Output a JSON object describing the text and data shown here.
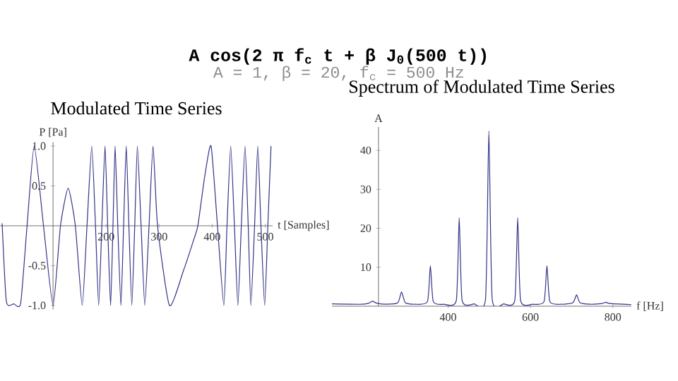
{
  "chart_data": [
    {
      "type": "line",
      "title": "Modulated Time Series",
      "xlabel": "t [Samples]",
      "ylabel": "P [Pa]",
      "color": "#333388",
      "annotations": [
        "A cos(2 π f$_{c}$ t + β J$_{0}$(500 t))",
        "A = 1, β = 20, f$_{c}$ = 500 Hz"
      ],
      "x": [
        4,
        12,
        26,
        39,
        51,
        64.5,
        82,
        100,
        114,
        128.5,
        142,
        155,
        164,
        173,
        180,
        186,
        192,
        198,
        203,
        208.5,
        213,
        217,
        222,
        228,
        233,
        238,
        243,
        248.5,
        254,
        259,
        266,
        273,
        281,
        288.5,
        297,
        319.5,
        346,
        364,
        373,
        386,
        398,
        410,
        422,
        428,
        435,
        442,
        448.5,
        455,
        462,
        468,
        473,
        480,
        486,
        492,
        499,
        505,
        511
      ],
      "values": [
        0.03,
        -0.95,
        -0.98,
        -0.97,
        0,
        1.0,
        0,
        -1.0,
        0,
        0.47,
        0,
        -1.0,
        0,
        1.0,
        0,
        -1.0,
        0,
        1.0,
        0,
        -1.0,
        0,
        1.0,
        0,
        -1.0,
        0,
        1.0,
        0,
        -1.0,
        0,
        1.0,
        0,
        -1.0,
        0,
        1.0,
        0,
        -1.0,
        -0.56,
        -0.2,
        0,
        0.62,
        1.0,
        0,
        -1.0,
        0,
        1.0,
        0,
        -1.0,
        0,
        1.0,
        0,
        -1.0,
        0,
        1.0,
        0,
        -1.0,
        0,
        1.0
      ],
      "xlim": [
        0,
        514
      ],
      "ylim": [
        -1.05,
        1.05
      ],
      "xticks": [
        200,
        300,
        400,
        500
      ],
      "yticks": [
        {
          "value": -1,
          "label": "-1.0"
        },
        {
          "value": -0.5,
          "label": "-0.5"
        },
        {
          "value": 0.5,
          "label": "0.5"
        },
        {
          "value": 1,
          "label": "1.0"
        }
      ]
    },
    {
      "type": "line",
      "title": "Spectrum of Modulated Time Series",
      "xlabel": "f [Hz]",
      "ylabel": "A",
      "color": "#333388",
      "x": [
        118,
        190,
        208,
        217,
        226,
        250,
        278,
        287,
        296,
        320,
        350,
        357,
        364,
        390,
        420,
        427,
        434,
        463,
        491,
        499,
        507,
        535,
        562,
        569,
        576,
        605,
        633,
        640,
        647,
        675,
        703,
        712,
        720,
        745,
        774,
        783,
        792,
        845
      ],
      "values": [
        0.6,
        0.5,
        0.8,
        1.3,
        0.8,
        0.5,
        0.9,
        3.7,
        0.9,
        0.5,
        1.2,
        10.4,
        1.2,
        0.5,
        1.5,
        22.7,
        1.5,
        0.6,
        2.0,
        45,
        2.0,
        0.6,
        1.5,
        22.7,
        1.5,
        0.5,
        1.2,
        10.4,
        1.2,
        0.5,
        0.9,
        2.9,
        0.9,
        0.5,
        0.7,
        1.0,
        0.7,
        0.4
      ],
      "xlim": [
        118,
        845
      ],
      "ylim": [
        0,
        46
      ],
      "xticks": [
        400,
        600,
        800
      ],
      "yticks": [
        10,
        20,
        30,
        40
      ]
    }
  ]
}
